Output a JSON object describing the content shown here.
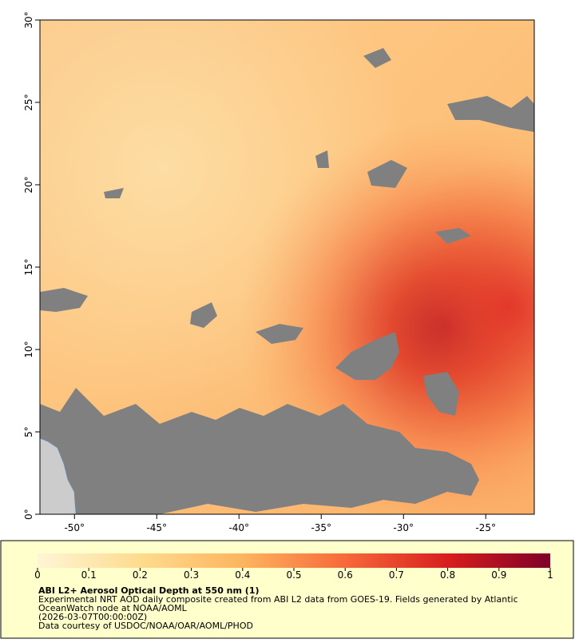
{
  "map": {
    "xlim": [
      -52.1,
      -22.05
    ],
    "ylim": [
      0,
      30
    ],
    "xticks": [
      {
        "value": -50,
        "label": "-50°"
      },
      {
        "value": -45,
        "label": "-45°"
      },
      {
        "value": -40,
        "label": "-40°"
      },
      {
        "value": -35,
        "label": "-35°"
      },
      {
        "value": -30,
        "label": "-30°"
      },
      {
        "value": -25,
        "label": "-25°"
      }
    ],
    "yticks": [
      {
        "value": 0,
        "label": "0°"
      },
      {
        "value": 5,
        "label": "5°"
      },
      {
        "value": 10,
        "label": "10°"
      },
      {
        "value": 15,
        "label": "15°"
      },
      {
        "value": 20,
        "label": "20°"
      },
      {
        "value": 25,
        "label": "25°"
      },
      {
        "value": 30,
        "label": "30°"
      }
    ]
  },
  "colorbar": {
    "lim": [
      0,
      1
    ],
    "ticks": [
      0,
      0.1,
      0.2,
      0.3,
      0.4,
      0.5,
      0.6,
      0.7,
      0.8,
      0.9,
      1
    ],
    "stops": [
      {
        "value": 0,
        "color": "#fff5d6"
      },
      {
        "value": 0.2,
        "color": "#fedb8e"
      },
      {
        "value": 0.4,
        "color": "#fdb45e"
      },
      {
        "value": 0.6,
        "color": "#f7693a"
      },
      {
        "value": 0.8,
        "color": "#d81e1e"
      },
      {
        "value": 1,
        "color": "#7f0027"
      }
    ]
  },
  "caption": {
    "title": "ABI L2+ Aerosol Optical Depth at 550 nm (1)",
    "lines": [
      "Experimental NRT AOD daily composite created from ABI L2 data from GOES-19. Fields generated by Atlantic",
      "OceanWatch node at NOAA/AOML",
      "(2026-03-07T00:00:00Z)",
      "Data courtesy of USDOC/NOAA/OAR/AOML/PHOD"
    ]
  }
}
